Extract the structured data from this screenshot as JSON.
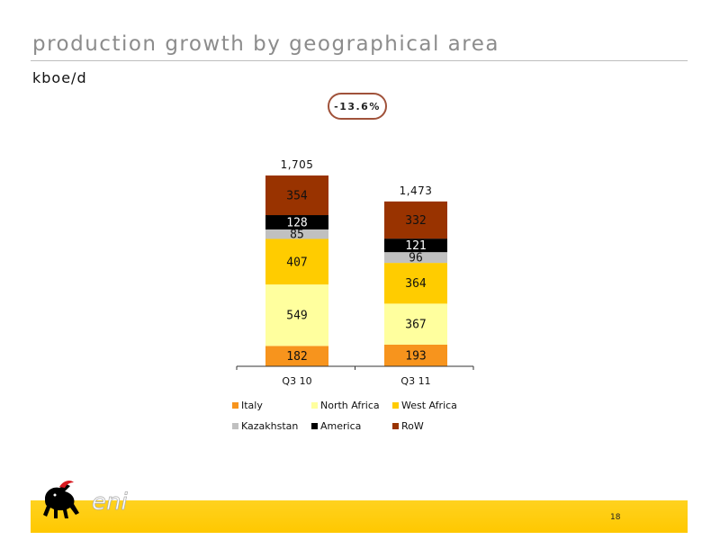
{
  "slide": {
    "title": "production growth by geographical area",
    "unit_label": "kboe/d",
    "change_badge": "-13.6%",
    "page_number": "18",
    "logo_text": "eni"
  },
  "colors": {
    "Italy": "#f7941d",
    "North Africa": "#ffff9e",
    "West Africa": "#ffcc00",
    "Kazakhstan": "#c0c0c0",
    "America": "#000000",
    "RoW": "#993300",
    "footer": "#ffcc00",
    "badge_border": "#a0523a"
  },
  "chart_data": {
    "type": "bar",
    "stacked": true,
    "categories": [
      "Q3 10",
      "Q3 11"
    ],
    "series": [
      {
        "name": "Italy",
        "values": [
          182,
          193
        ]
      },
      {
        "name": "North Africa",
        "values": [
          549,
          367
        ]
      },
      {
        "name": "West Africa",
        "values": [
          407,
          364
        ]
      },
      {
        "name": "Kazakhstan",
        "values": [
          85,
          96
        ]
      },
      {
        "name": "America",
        "values": [
          128,
          121
        ]
      },
      {
        "name": "RoW",
        "values": [
          354,
          332
        ]
      }
    ],
    "totals": [
      "1,705",
      "1,473"
    ],
    "ylabel": "kboe/d",
    "ylim": [
      0,
      1750
    ],
    "grid": false,
    "legend_position": "bottom",
    "annotation": "-13.6%"
  }
}
